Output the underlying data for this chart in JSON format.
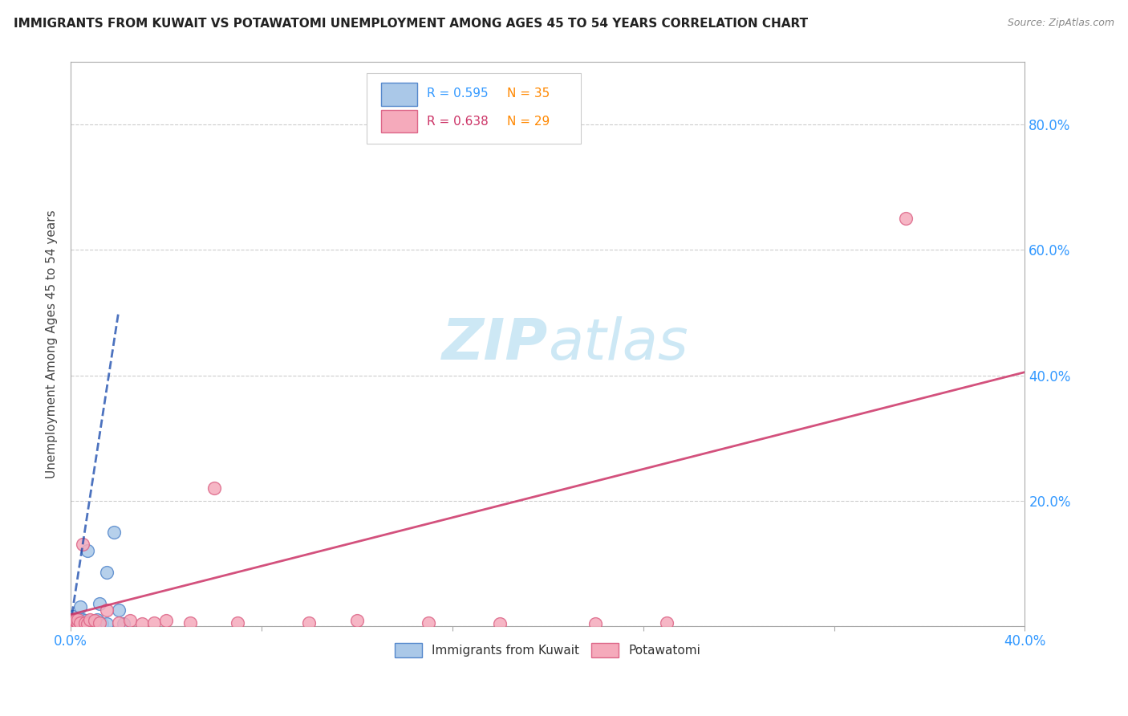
{
  "title": "IMMIGRANTS FROM KUWAIT VS POTAWATOMI UNEMPLOYMENT AMONG AGES 45 TO 54 YEARS CORRELATION CHART",
  "source": "Source: ZipAtlas.com",
  "ylabel": "Unemployment Among Ages 45 to 54 years",
  "xlim": [
    0.0,
    0.4
  ],
  "ylim": [
    0.0,
    0.9
  ],
  "ytick_positions": [
    0.0,
    0.2,
    0.4,
    0.6,
    0.8
  ],
  "xtick_positions": [
    0.0,
    0.08,
    0.16,
    0.24,
    0.32,
    0.4
  ],
  "xtick_labels": [
    "0.0%",
    "",
    "",
    "",
    "",
    "40.0%"
  ],
  "right_ytick_labels": [
    "20.0%",
    "40.0%",
    "60.0%",
    "80.0%"
  ],
  "right_ytick_positions": [
    0.2,
    0.4,
    0.6,
    0.8
  ],
  "blue_R": 0.595,
  "blue_N": 35,
  "pink_R": 0.638,
  "pink_N": 29,
  "blue_color": "#aac8e8",
  "pink_color": "#f5aabb",
  "blue_edge": "#5588cc",
  "pink_edge": "#dd6688",
  "blue_trend_color": "#1144aa",
  "pink_trend_color": "#cc3366",
  "legend_edge": "#cccccc",
  "grid_color": "#cccccc",
  "spine_color": "#aaaaaa",
  "watermark_color": "#cde8f5",
  "title_color": "#222222",
  "source_color": "#888888",
  "axis_label_color": "#444444",
  "tick_label_color": "#3399ff",
  "blue_trend_x": [
    0.0005,
    0.02
  ],
  "blue_trend_y": [
    0.018,
    0.5
  ],
  "pink_trend_x": [
    0.0,
    0.4
  ],
  "pink_trend_y": [
    0.018,
    0.405
  ],
  "blue_points_x": [
    0.0005,
    0.001,
    0.001,
    0.0015,
    0.002,
    0.002,
    0.002,
    0.003,
    0.003,
    0.003,
    0.003,
    0.004,
    0.004,
    0.004,
    0.005,
    0.005,
    0.005,
    0.006,
    0.006,
    0.007,
    0.007,
    0.008,
    0.008,
    0.009,
    0.01,
    0.01,
    0.011,
    0.012,
    0.012,
    0.013,
    0.015,
    0.015,
    0.018,
    0.02,
    0.022
  ],
  "blue_points_y": [
    0.003,
    0.015,
    0.004,
    0.008,
    0.003,
    0.01,
    0.005,
    0.005,
    0.003,
    0.008,
    0.003,
    0.006,
    0.003,
    0.03,
    0.005,
    0.01,
    0.003,
    0.008,
    0.003,
    0.005,
    0.12,
    0.003,
    0.005,
    0.005,
    0.005,
    0.003,
    0.01,
    0.005,
    0.035,
    0.003,
    0.085,
    0.003,
    0.15,
    0.025,
    0.003
  ],
  "pink_points_x": [
    0.0005,
    0.001,
    0.001,
    0.002,
    0.003,
    0.003,
    0.004,
    0.005,
    0.006,
    0.007,
    0.008,
    0.01,
    0.012,
    0.015,
    0.02,
    0.025,
    0.03,
    0.035,
    0.04,
    0.05,
    0.06,
    0.07,
    0.1,
    0.12,
    0.15,
    0.18,
    0.22,
    0.25,
    0.35
  ],
  "pink_points_y": [
    0.003,
    0.005,
    0.01,
    0.008,
    0.005,
    0.01,
    0.005,
    0.13,
    0.005,
    0.003,
    0.01,
    0.008,
    0.005,
    0.025,
    0.005,
    0.008,
    0.003,
    0.005,
    0.008,
    0.005,
    0.22,
    0.005,
    0.005,
    0.008,
    0.005,
    0.003,
    0.003,
    0.005,
    0.65
  ]
}
